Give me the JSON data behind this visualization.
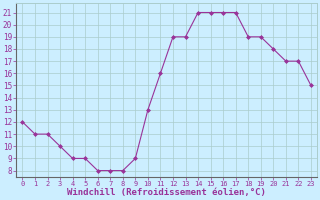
{
  "x": [
    0,
    1,
    2,
    3,
    4,
    5,
    6,
    7,
    8,
    9,
    10,
    11,
    12,
    13,
    14,
    15,
    16,
    17,
    18,
    19,
    20,
    21,
    22,
    23
  ],
  "y": [
    12,
    11,
    11,
    10,
    9,
    9,
    8,
    8,
    8,
    9,
    13,
    16,
    19,
    19,
    21,
    21,
    21,
    21,
    19,
    19,
    18,
    17,
    17,
    15
  ],
  "xlim": [
    -0.5,
    23.5
  ],
  "ylim": [
    7.5,
    21.8
  ],
  "yticks": [
    8,
    9,
    10,
    11,
    12,
    13,
    14,
    15,
    16,
    17,
    18,
    19,
    20,
    21
  ],
  "xticks": [
    0,
    1,
    2,
    3,
    4,
    5,
    6,
    7,
    8,
    9,
    10,
    11,
    12,
    13,
    14,
    15,
    16,
    17,
    18,
    19,
    20,
    21,
    22,
    23
  ],
  "line_color": "#993399",
  "marker_color": "#993399",
  "bg_color": "#cceeff",
  "grid_color": "#aacccc",
  "xlabel": "Windchill (Refroidissement éolien,°C)",
  "xlabel_color": "#993399",
  "tick_label_color": "#993399"
}
